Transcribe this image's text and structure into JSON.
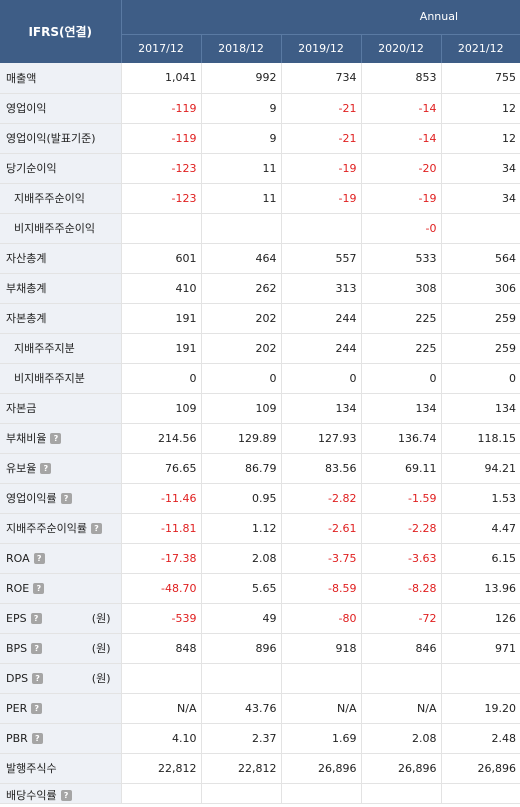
{
  "header": {
    "corner": "IFRS(연결)",
    "period": "Annual",
    "years": [
      "2017/12",
      "2018/12",
      "2019/12",
      "2020/12",
      "2021/12"
    ]
  },
  "rows": [
    {
      "label": "매출액",
      "sub": false,
      "help": false,
      "unit": "",
      "values": [
        "1,041",
        "992",
        "734",
        "853",
        "755"
      ]
    },
    {
      "label": "영업이익",
      "sub": false,
      "help": false,
      "unit": "",
      "values": [
        "-119",
        "9",
        "-21",
        "-14",
        "12"
      ]
    },
    {
      "label": "영업이익(발표기준)",
      "sub": false,
      "help": false,
      "unit": "",
      "values": [
        "-119",
        "9",
        "-21",
        "-14",
        "12"
      ]
    },
    {
      "label": "당기순이익",
      "sub": false,
      "help": false,
      "unit": "",
      "values": [
        "-123",
        "11",
        "-19",
        "-20",
        "34"
      ]
    },
    {
      "label": "지배주주순이익",
      "sub": true,
      "help": false,
      "unit": "",
      "values": [
        "-123",
        "11",
        "-19",
        "-19",
        "34"
      ]
    },
    {
      "label": "비지배주주순이익",
      "sub": true,
      "help": false,
      "unit": "",
      "values": [
        "",
        "",
        "",
        "-0",
        ""
      ]
    },
    {
      "label": "자산총계",
      "sub": false,
      "help": false,
      "unit": "",
      "values": [
        "601",
        "464",
        "557",
        "533",
        "564"
      ]
    },
    {
      "label": "부채총계",
      "sub": false,
      "help": false,
      "unit": "",
      "values": [
        "410",
        "262",
        "313",
        "308",
        "306"
      ]
    },
    {
      "label": "자본총계",
      "sub": false,
      "help": false,
      "unit": "",
      "values": [
        "191",
        "202",
        "244",
        "225",
        "259"
      ]
    },
    {
      "label": "지배주주지분",
      "sub": true,
      "help": false,
      "unit": "",
      "values": [
        "191",
        "202",
        "244",
        "225",
        "259"
      ]
    },
    {
      "label": "비지배주주지분",
      "sub": true,
      "help": false,
      "unit": "",
      "values": [
        "0",
        "0",
        "0",
        "0",
        "0"
      ]
    },
    {
      "label": "자본금",
      "sub": false,
      "help": false,
      "unit": "",
      "values": [
        "109",
        "109",
        "134",
        "134",
        "134"
      ]
    },
    {
      "label": "부채비율",
      "sub": false,
      "help": true,
      "unit": "",
      "values": [
        "214.56",
        "129.89",
        "127.93",
        "136.74",
        "118.15"
      ]
    },
    {
      "label": "유보율",
      "sub": false,
      "help": true,
      "unit": "",
      "values": [
        "76.65",
        "86.79",
        "83.56",
        "69.11",
        "94.21"
      ]
    },
    {
      "label": "영업이익률",
      "sub": false,
      "help": true,
      "unit": "",
      "values": [
        "-11.46",
        "0.95",
        "-2.82",
        "-1.59",
        "1.53"
      ]
    },
    {
      "label": "지배주주순이익률",
      "sub": false,
      "help": true,
      "unit": "",
      "values": [
        "-11.81",
        "1.12",
        "-2.61",
        "-2.28",
        "4.47"
      ]
    },
    {
      "label": "ROA",
      "sub": false,
      "help": true,
      "unit": "",
      "values": [
        "-17.38",
        "2.08",
        "-3.75",
        "-3.63",
        "6.15"
      ]
    },
    {
      "label": "ROE",
      "sub": false,
      "help": true,
      "unit": "",
      "values": [
        "-48.70",
        "5.65",
        "-8.59",
        "-8.28",
        "13.96"
      ]
    },
    {
      "label": "EPS",
      "sub": false,
      "help": true,
      "unit": "(원)",
      "values": [
        "-539",
        "49",
        "-80",
        "-72",
        "126"
      ]
    },
    {
      "label": "BPS",
      "sub": false,
      "help": true,
      "unit": "(원)",
      "values": [
        "848",
        "896",
        "918",
        "846",
        "971"
      ]
    },
    {
      "label": "DPS",
      "sub": false,
      "help": true,
      "unit": "(원)",
      "values": [
        "",
        "",
        "",
        "",
        ""
      ]
    },
    {
      "label": "PER",
      "sub": false,
      "help": true,
      "unit": "",
      "values": [
        "N/A",
        "43.76",
        "N/A",
        "N/A",
        "19.20"
      ]
    },
    {
      "label": "PBR",
      "sub": false,
      "help": true,
      "unit": "",
      "values": [
        "4.10",
        "2.37",
        "1.69",
        "2.08",
        "2.48"
      ]
    },
    {
      "label": "발행주식수",
      "sub": false,
      "help": false,
      "unit": "",
      "values": [
        "22,812",
        "22,812",
        "26,896",
        "26,896",
        "26,896"
      ]
    },
    {
      "label": "배당수익률",
      "sub": false,
      "help": true,
      "unit": "",
      "values": [
        "",
        "",
        "",
        "",
        ""
      ]
    }
  ],
  "help_glyph": "?",
  "colors": {
    "header_bg": "#3e5d86",
    "label_bg": "#eef1f6",
    "negative": "#e02020"
  }
}
